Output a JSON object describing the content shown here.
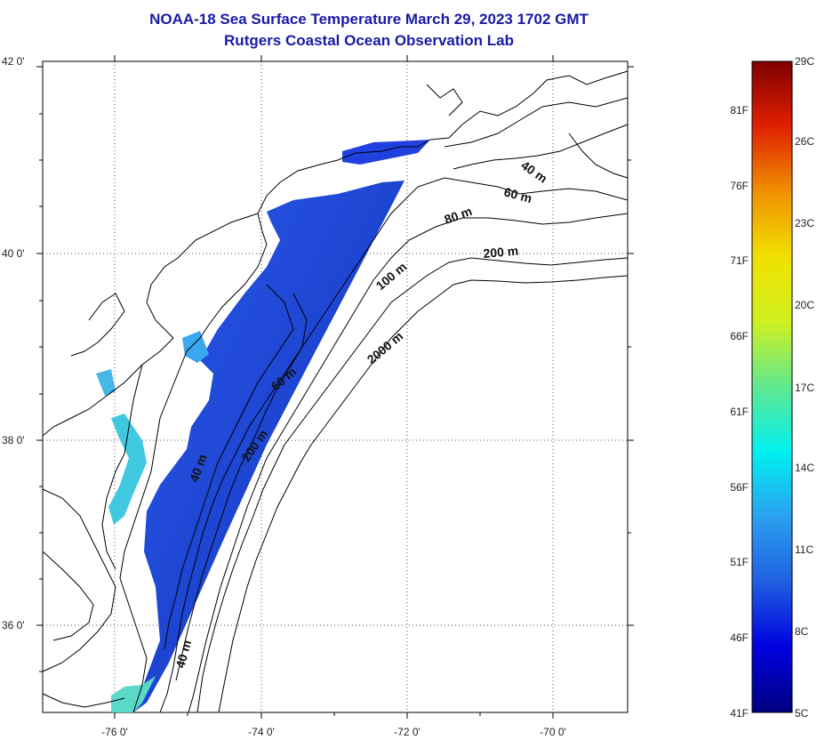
{
  "title_line1": "NOAA-18 Sea Surface Temperature March 29, 2023 1702 GMT",
  "title_line2": "Rutgers Coastal Ocean Observation Lab",
  "lat_ticks": [
    "42 0'",
    "40 0'",
    "38 0'",
    "36 0'"
  ],
  "lon_ticks": [
    "-76 0'",
    "-74 0'",
    "-72 0'",
    "-70 0'"
  ],
  "contour_labels": {
    "c40a": "40 m",
    "c60a": "60 m",
    "c80a": "80 m",
    "c200a": "200 m",
    "c100a": "100 m",
    "c2000a": "2000 m",
    "c60b": "60 m",
    "c200b": "200 m",
    "c40b": "40 m",
    "c40c": "40 m"
  },
  "colorbar": {
    "celsius_labels": [
      "29C",
      "26C",
      "23C",
      "20C",
      "17C",
      "14C",
      "11C",
      "8C",
      "5C"
    ],
    "fahrenheit_labels": [
      "81F",
      "76F",
      "71F",
      "66F",
      "61F",
      "56F",
      "51F",
      "46F",
      "41F"
    ]
  },
  "colors": {
    "title": "#1a1aa6",
    "sst_main": "#1f4fd8",
    "sst_nearshore": "#40c8e0"
  }
}
